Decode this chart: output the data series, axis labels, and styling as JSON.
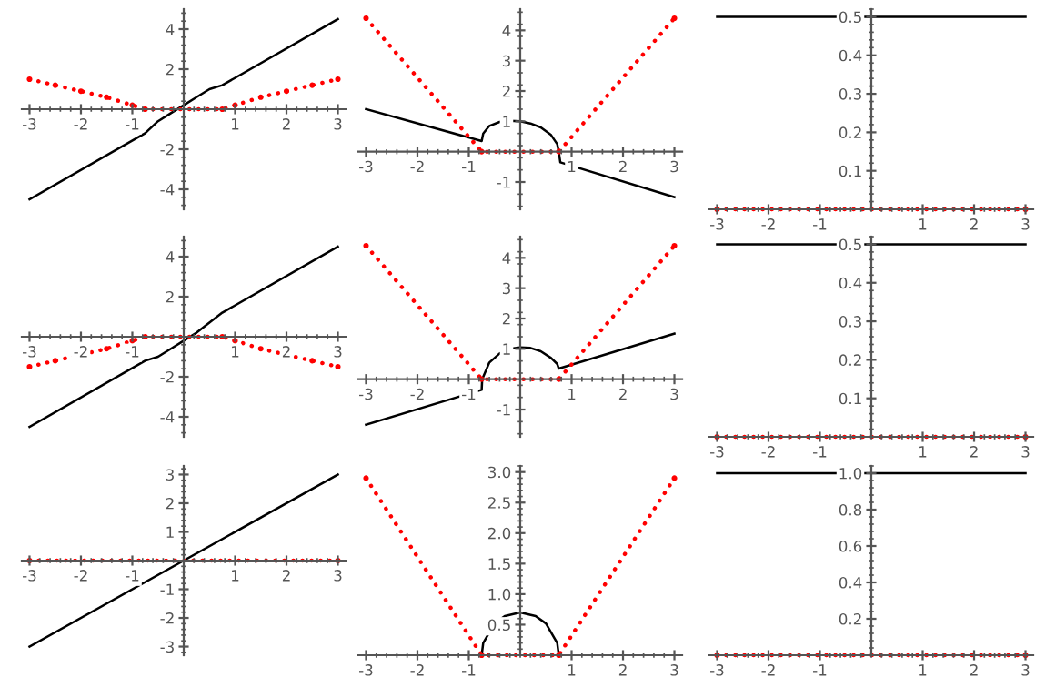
{
  "chart_data": [
    {
      "type": "line",
      "xlim": [
        -3.15,
        3.15
      ],
      "ylim": [
        -5,
        5
      ],
      "xticks": [
        -3,
        -2,
        -1,
        1,
        2,
        3
      ],
      "yticks": [
        -4,
        -2,
        2,
        4
      ],
      "series": [
        {
          "color": "#000000",
          "line_style": "solid",
          "x": [
            -3,
            -0.75,
            -0.5,
            -0.25,
            0,
            0.25,
            0.5,
            0.75,
            3
          ],
          "values": [
            -4.5,
            -1.2,
            -0.6,
            -0.2,
            0.2,
            0.6,
            1,
            1.2,
            4.5
          ]
        },
        {
          "color": "#ff0000",
          "line_style": "dotted",
          "marker": "circle",
          "x": [
            -3,
            -2.5,
            -2,
            -1.5,
            -1,
            -0.75,
            0.75,
            1,
            1.5,
            2,
            2.5,
            3
          ],
          "values": [
            1.5,
            1.2,
            0.9,
            0.6,
            0.2,
            0,
            0,
            0.2,
            0.6,
            0.9,
            1.2,
            1.5
          ]
        }
      ]
    },
    {
      "type": "line",
      "xlim": [
        -3.15,
        3.15
      ],
      "ylim": [
        -1.9,
        4.7
      ],
      "xticks": [
        -3,
        -2,
        -1,
        1,
        2,
        3
      ],
      "yticks": [
        -1,
        1,
        2,
        3,
        4
      ],
      "series": [
        {
          "color": "#000000",
          "line_style": "solid",
          "x": [
            -3,
            -0.75,
            -0.72,
            -0.6,
            -0.4,
            -0.2,
            0,
            0.2,
            0.4,
            0.6,
            0.72,
            0.75,
            0.78,
            3
          ],
          "values": [
            1.4,
            0.35,
            0.6,
            0.85,
            0.98,
            1.02,
            1.0,
            0.93,
            0.8,
            0.55,
            0.25,
            0,
            -0.35,
            -1.5
          ]
        },
        {
          "color": "#ff0000",
          "line_style": "dotted",
          "marker": "circle",
          "x": [
            -3,
            -0.75,
            0.75,
            3
          ],
          "values": [
            4.4,
            0,
            0,
            4.4
          ]
        }
      ]
    },
    {
      "type": "line",
      "xlim": [
        -3.15,
        3.15
      ],
      "ylim": [
        0,
        0.52
      ],
      "xticks": [
        -3,
        -2,
        -1,
        1,
        2,
        3
      ],
      "yticks": [
        0.1,
        0.2,
        0.3,
        0.4,
        0.5
      ],
      "series": [
        {
          "color": "#000000",
          "line_style": "solid",
          "x": [
            -3,
            3
          ],
          "values": [
            0.5,
            0.5
          ]
        },
        {
          "color": "#ff0000",
          "line_style": "dotted",
          "marker": "circle",
          "x": [
            -3,
            3
          ],
          "values": [
            0,
            0
          ]
        }
      ]
    },
    {
      "type": "line",
      "xlim": [
        -3.15,
        3.15
      ],
      "ylim": [
        -5,
        5
      ],
      "xticks": [
        -3,
        -2,
        -1,
        1,
        2,
        3
      ],
      "yticks": [
        -4,
        -2,
        2,
        4
      ],
      "series": [
        {
          "color": "#000000",
          "line_style": "solid",
          "x": [
            -3,
            -0.75,
            -0.5,
            -0.25,
            0,
            0.25,
            0.5,
            0.75,
            3
          ],
          "values": [
            -4.5,
            -1.2,
            -1,
            -0.6,
            -0.2,
            0.2,
            0.7,
            1.2,
            4.5
          ]
        },
        {
          "color": "#ff0000",
          "line_style": "dotted",
          "marker": "circle",
          "x": [
            -3,
            -2.5,
            -1.5,
            -1,
            -0.75,
            0.75,
            1,
            1.5,
            2.5,
            3
          ],
          "values": [
            -1.5,
            -1.2,
            -0.6,
            -0.2,
            0,
            0,
            -0.2,
            -0.6,
            -1.2,
            -1.5
          ]
        }
      ]
    },
    {
      "type": "line",
      "xlim": [
        -3.15,
        3.15
      ],
      "ylim": [
        -1.9,
        4.7
      ],
      "xticks": [
        -3,
        -2,
        -1,
        1,
        2,
        3
      ],
      "yticks": [
        -1,
        1,
        2,
        3,
        4
      ],
      "series": [
        {
          "color": "#000000",
          "line_style": "solid",
          "x": [
            -3,
            -0.75,
            -0.74,
            -0.6,
            -0.4,
            -0.2,
            0,
            0.2,
            0.4,
            0.6,
            0.72,
            0.75,
            3
          ],
          "values": [
            -1.5,
            -0.35,
            0,
            0.55,
            0.85,
            1.0,
            1.05,
            1.03,
            0.92,
            0.7,
            0.5,
            0.35,
            1.5
          ]
        },
        {
          "color": "#ff0000",
          "line_style": "dotted",
          "marker": "circle",
          "x": [
            -3,
            -0.75,
            0.75,
            3
          ],
          "values": [
            4.4,
            0,
            0,
            4.4
          ]
        }
      ]
    },
    {
      "type": "line",
      "xlim": [
        -3.15,
        3.15
      ],
      "ylim": [
        0,
        0.52
      ],
      "xticks": [
        -3,
        -2,
        -1,
        1,
        2,
        3
      ],
      "yticks": [
        0.1,
        0.2,
        0.3,
        0.4,
        0.5
      ],
      "series": [
        {
          "color": "#000000",
          "line_style": "solid",
          "x": [
            -3,
            3
          ],
          "values": [
            0.5,
            0.5
          ]
        },
        {
          "color": "#ff0000",
          "line_style": "dotted",
          "marker": "circle",
          "x": [
            -3,
            3
          ],
          "values": [
            0,
            0
          ]
        }
      ]
    },
    {
      "type": "line",
      "xlim": [
        -3.15,
        3.15
      ],
      "ylim": [
        -3.3,
        3.3
      ],
      "xticks": [
        -3,
        -2,
        -1,
        1,
        2,
        3
      ],
      "yticks": [
        -3,
        -2,
        -1,
        1,
        2,
        3
      ],
      "series": [
        {
          "color": "#000000",
          "line_style": "solid",
          "x": [
            -3,
            3
          ],
          "values": [
            -3,
            3
          ]
        },
        {
          "color": "#ff0000",
          "line_style": "dotted",
          "marker": "circle",
          "x": [
            -3,
            3
          ],
          "values": [
            0,
            0
          ]
        }
      ]
    },
    {
      "type": "line",
      "xlim": [
        -3.15,
        3.15
      ],
      "ylim": [
        0,
        3.1
      ],
      "xticks": [
        -3,
        -2,
        -1,
        1,
        2,
        3
      ],
      "yticks": [
        0.5,
        {
          "value": 1,
          "label": "1.0"
        },
        1.5,
        {
          "value": 2,
          "label": "2.0"
        },
        2.5,
        {
          "value": 3,
          "label": "3.0"
        }
      ],
      "series": [
        {
          "color": "#000000",
          "line_style": "solid",
          "x": [
            -0.75,
            -0.72,
            -0.5,
            -0.3,
            0,
            0.3,
            0.5,
            0.72,
            0.75
          ],
          "values": [
            0,
            0.2,
            0.52,
            0.64,
            0.7,
            0.64,
            0.52,
            0.2,
            0
          ]
        },
        {
          "color": "#ff0000",
          "line_style": "dotted",
          "marker": "circle",
          "x": [
            -3,
            -0.75,
            0.75,
            3
          ],
          "values": [
            2.9,
            0,
            0,
            2.9
          ]
        }
      ]
    },
    {
      "type": "line",
      "xlim": [
        -3.15,
        3.15
      ],
      "ylim": [
        0,
        1.04
      ],
      "xticks": [
        -3,
        -2,
        -1,
        1,
        2,
        3
      ],
      "yticks": [
        0.2,
        0.4,
        0.6,
        0.8,
        {
          "value": 1,
          "label": "1.0"
        }
      ],
      "series": [
        {
          "color": "#000000",
          "line_style": "solid",
          "x": [
            -3,
            3
          ],
          "values": [
            1,
            1
          ]
        },
        {
          "color": "#ff0000",
          "line_style": "dotted",
          "marker": "circle",
          "x": [
            -3,
            3
          ],
          "values": [
            0,
            0
          ]
        }
      ]
    }
  ]
}
